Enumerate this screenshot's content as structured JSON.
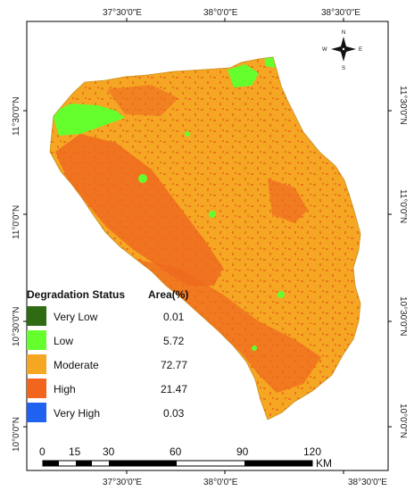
{
  "map": {
    "top_ticks": [
      "37°30'0\"E",
      "38°0'0\"E",
      "38°30'0\"E"
    ],
    "bottom_ticks": [
      "37°30'0\"E",
      "38°0'0\"E",
      "38°30'0\"E"
    ],
    "left_ticks": [
      "11°30'0\"N",
      "11°0'0\"N",
      "10°30'0\"N",
      "10°0'0\"N"
    ],
    "right_ticks": [
      "11°30'0\"N",
      "11°0'0\"N",
      "10°30'0\"N",
      "10°0'0\"N"
    ]
  },
  "legend": {
    "title": "Degradation Status",
    "area_header": "Area(%)",
    "classes": [
      {
        "label": "Very Low",
        "area": "0.01",
        "color": "#2e6b12"
      },
      {
        "label": "Low",
        "area": "5.72",
        "color": "#66ff2e"
      },
      {
        "label": "Moderate",
        "area": "72.77",
        "color": "#f5a623"
      },
      {
        "label": "High",
        "area": "21.47",
        "color": "#f2651c"
      },
      {
        "label": "Very High",
        "area": "0.03",
        "color": "#1f62f0"
      }
    ]
  },
  "scale_bar": {
    "labels": [
      "0",
      "15",
      "30",
      "60",
      "90",
      "120"
    ],
    "unit": "KM"
  },
  "north_arrow": {
    "n": "N",
    "s": "S",
    "e": "E",
    "w": "W"
  }
}
